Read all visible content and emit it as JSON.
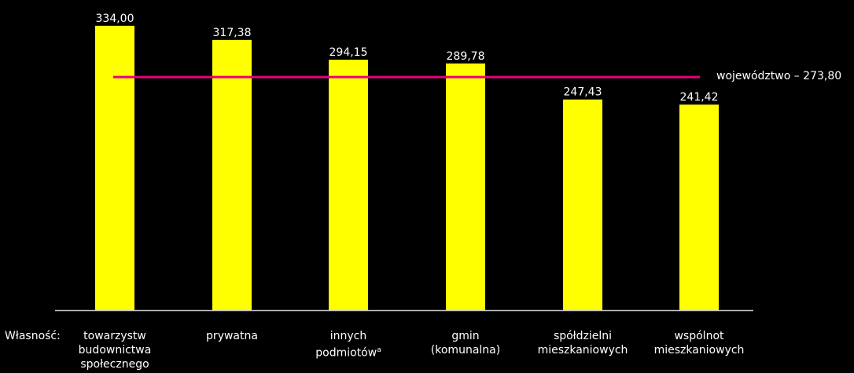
{
  "chart_data": {
    "type": "bar",
    "xlabel": "Własność:",
    "categories": [
      "towarzystw\nbudownictwa\nspołecznego",
      "prywatna",
      "innych\npodmiotów",
      "gmin\n(komunalna)",
      "spółdzielni\nmieszkaniowych",
      "wspólnot\nmieszkaniowych"
    ],
    "category_superscripts": [
      "",
      "",
      "a",
      "",
      "",
      ""
    ],
    "values": [
      334.0,
      317.38,
      294.15,
      289.78,
      247.43,
      241.42
    ],
    "value_labels": [
      "334,00",
      "317,38",
      "294,15",
      "289,78",
      "247,43",
      "241,42"
    ],
    "reference_line": {
      "value": 273.8,
      "label": "województwo – 273,80"
    },
    "ylim": [
      0,
      344
    ],
    "grid": false,
    "legend": "none",
    "colors": {
      "bar": "#ffff00",
      "reference": "#e6007e",
      "axis": "#c8c8c8",
      "background": "#000000",
      "text": "#ffffff"
    }
  }
}
